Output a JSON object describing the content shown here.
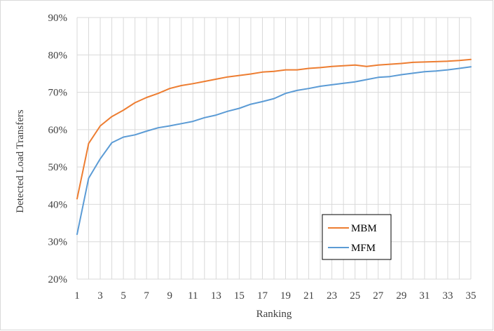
{
  "chart_data": {
    "type": "line",
    "xlabel": "Ranking",
    "ylabel": "Detected Load Transfers",
    "x": [
      1,
      2,
      3,
      4,
      5,
      6,
      7,
      8,
      9,
      10,
      11,
      12,
      13,
      14,
      15,
      16,
      17,
      18,
      19,
      20,
      21,
      22,
      23,
      24,
      25,
      26,
      27,
      28,
      29,
      30,
      31,
      32,
      33,
      34,
      35
    ],
    "xticks": [
      "1",
      "3",
      "5",
      "7",
      "9",
      "11",
      "13",
      "15",
      "17",
      "19",
      "21",
      "23",
      "25",
      "27",
      "29",
      "31",
      "33",
      "35"
    ],
    "yticks": [
      "20%",
      "30%",
      "40%",
      "50%",
      "60%",
      "70%",
      "80%",
      "90%"
    ],
    "ylim": [
      20,
      90
    ],
    "grid": true,
    "legend_position": "lower-right",
    "series": [
      {
        "name": "MBM",
        "color": "#ed7d31",
        "values": [
          41.5,
          56.3,
          61.0,
          63.5,
          65.2,
          67.2,
          68.6,
          69.7,
          71.0,
          71.8,
          72.3,
          72.9,
          73.5,
          74.1,
          74.5,
          74.9,
          75.4,
          75.6,
          76.0,
          76.0,
          76.4,
          76.6,
          76.9,
          77.1,
          77.3,
          76.9,
          77.3,
          77.5,
          77.7,
          78.0,
          78.1,
          78.2,
          78.3,
          78.5,
          78.8
        ]
      },
      {
        "name": "MFM",
        "color": "#5b9bd5",
        "values": [
          32.0,
          47.0,
          52.2,
          56.5,
          58.0,
          58.6,
          59.6,
          60.5,
          61.0,
          61.6,
          62.2,
          63.2,
          63.9,
          64.9,
          65.7,
          66.8,
          67.5,
          68.3,
          69.7,
          70.5,
          71.0,
          71.6,
          72.0,
          72.4,
          72.8,
          73.4,
          74.0,
          74.2,
          74.7,
          75.1,
          75.5,
          75.7,
          76.0,
          76.4,
          76.8
        ]
      }
    ]
  }
}
